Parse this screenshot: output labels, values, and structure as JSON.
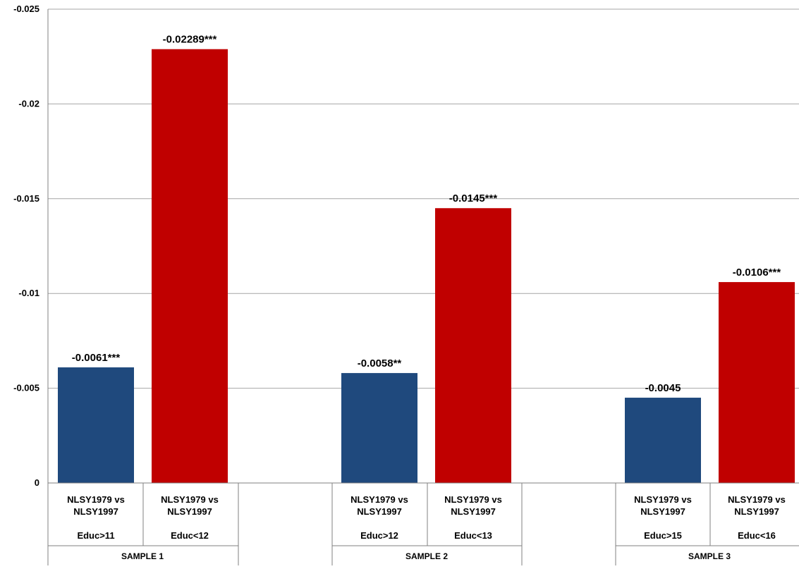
{
  "chart_data": {
    "type": "bar",
    "title": "",
    "xlabel": "",
    "ylabel": "",
    "ylim": [
      0,
      -0.025
    ],
    "y_axis_reversed": true,
    "yticks": [
      0,
      -0.005,
      -0.01,
      -0.015,
      -0.02,
      -0.025
    ],
    "ytick_labels": [
      "0",
      "-0.005",
      "-0.01",
      "-0.015",
      "-0.02",
      "-0.025"
    ],
    "grid": true,
    "legend": "none",
    "colors": {
      "blue": "#1f497d",
      "red": "#c00000",
      "grid": "#a6a6a6",
      "axis": "#808080"
    },
    "groups": [
      {
        "name": "SAMPLE 1",
        "bars": [
          {
            "category": "NLSY1979 vs NLSY1997",
            "condition": "Educ>11",
            "value": -0.0061,
            "label": "-0.0061***",
            "color": "blue"
          },
          {
            "category": "NLSY1979 vs NLSY1997",
            "condition": "Educ<12",
            "value": -0.02289,
            "label": "-0.02289***",
            "color": "red"
          }
        ]
      },
      {
        "name": "SAMPLE 2",
        "bars": [
          {
            "category": "NLSY1979 vs NLSY1997",
            "condition": "Educ>12",
            "value": -0.0058,
            "label": "-0.0058**",
            "color": "blue"
          },
          {
            "category": "NLSY1979 vs NLSY1997",
            "condition": "Educ<13",
            "value": -0.0145,
            "label": "-0.0145***",
            "color": "red"
          }
        ]
      },
      {
        "name": "SAMPLE 3",
        "bars": [
          {
            "category": "NLSY1979 vs NLSY1997",
            "condition": "Educ>15",
            "value": -0.0045,
            "label": "-0.0045",
            "color": "blue"
          },
          {
            "category": "NLSY1979 vs NLSY1997",
            "condition": "Educ<16",
            "value": -0.0106,
            "label": "-0.0106***",
            "color": "red"
          }
        ]
      }
    ]
  }
}
